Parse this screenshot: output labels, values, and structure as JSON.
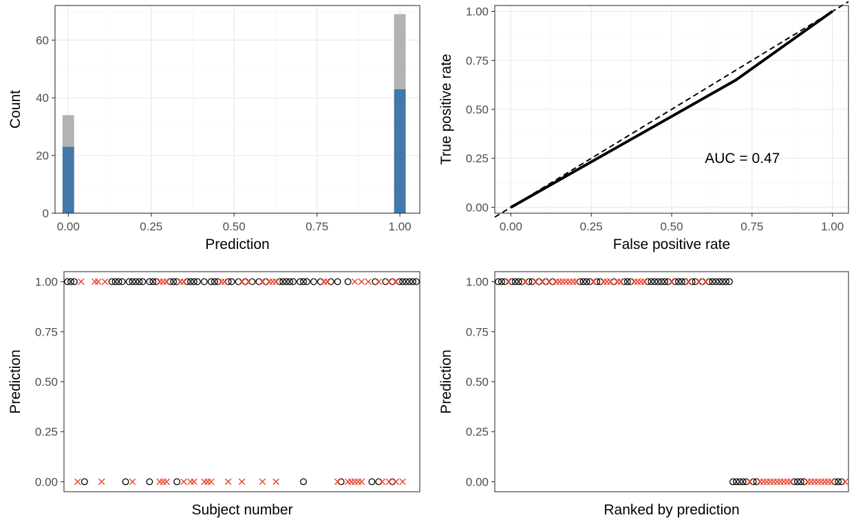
{
  "chart_data": [
    {
      "type": "bar",
      "panel": "histogram",
      "xlabel": "Prediction",
      "ylabel": "Count",
      "xlim": [
        -0.04,
        1.06
      ],
      "ylim": [
        0,
        72
      ],
      "x_ticks": [
        "0.00",
        "0.25",
        "0.50",
        "0.75",
        "1.00"
      ],
      "y_ticks": [
        "0",
        "20",
        "40",
        "60"
      ],
      "stacked": true,
      "categories": [
        0,
        1
      ],
      "series": [
        {
          "group": "lower",
          "color": "#4477aa",
          "values": [
            23,
            43
          ]
        },
        {
          "group": "upper",
          "color": "#b3b3b3",
          "values": [
            11,
            26
          ]
        }
      ],
      "totals": [
        34,
        69
      ],
      "grid": true
    },
    {
      "type": "line",
      "panel": "roc",
      "xlabel": "False positive rate",
      "ylabel": "True positive rate",
      "xlim": [
        -0.05,
        1.05
      ],
      "ylim": [
        -0.03,
        1.03
      ],
      "x_ticks": [
        "0.00",
        "0.25",
        "0.50",
        "0.75",
        "1.00"
      ],
      "y_ticks": [
        "0.00",
        "0.25",
        "0.50",
        "0.75",
        "1.00"
      ],
      "series": [
        {
          "style": "solid",
          "color": "#000000",
          "x": [
            0,
            0.7,
            1.0
          ],
          "y": [
            0,
            0.65,
            1.0
          ]
        },
        {
          "style": "dashed",
          "color": "#000000",
          "x": [
            -0.05,
            1.05
          ],
          "y": [
            -0.05,
            1.05
          ]
        }
      ],
      "annotation": {
        "text": "AUC = 0.47",
        "x": 0.72,
        "y": 0.25
      },
      "grid": true
    },
    {
      "type": "scatter",
      "panel": "by-subject",
      "xlabel": "Subject number",
      "ylabel": "Prediction",
      "ylim": [
        -0.05,
        1.05
      ],
      "y_ticks": [
        "0.00",
        "0.25",
        "0.50",
        "0.75",
        "1.00"
      ],
      "x_count": 103,
      "grid": false,
      "series": [
        {
          "marker": "circle",
          "color": "#000000",
          "y_value": 1,
          "x": [
            1,
            2,
            3,
            14,
            15,
            16,
            17,
            19,
            20,
            21,
            22,
            23,
            25,
            26,
            27,
            31,
            32,
            33,
            36,
            37,
            38,
            39,
            41,
            43,
            44,
            45,
            48,
            49,
            51,
            53,
            55,
            57,
            59,
            63,
            64,
            65,
            66,
            67,
            69,
            70,
            71,
            73,
            75,
            78,
            80,
            83,
            91,
            94,
            96,
            98,
            99,
            100,
            101,
            102,
            103
          ]
        },
        {
          "marker": "cross",
          "color": "#e8402b",
          "y_value": 1,
          "x": [
            5,
            9,
            10,
            12,
            28,
            29,
            30,
            34,
            35,
            46,
            47,
            52,
            54,
            58,
            60,
            61,
            62,
            76,
            77,
            85,
            87,
            89,
            92,
            95,
            97
          ]
        },
        {
          "marker": "circle",
          "color": "#000000",
          "y_value": 0,
          "x": [
            6,
            18,
            25,
            33,
            70,
            81,
            90,
            92,
            96
          ]
        },
        {
          "marker": "cross",
          "color": "#e8402b",
          "y_value": 0,
          "x": [
            4,
            11,
            20,
            28,
            29,
            30,
            35,
            37,
            38,
            41,
            42,
            43,
            48,
            52,
            58,
            62,
            80,
            83,
            84,
            85,
            86,
            87,
            93,
            95,
            97,
            99
          ]
        }
      ]
    },
    {
      "type": "scatter",
      "panel": "ranked",
      "xlabel": "Ranked by prediction",
      "ylabel": "Prediction",
      "ylim": [
        -0.05,
        1.05
      ],
      "y_ticks": [
        "0.00",
        "0.25",
        "0.50",
        "0.75",
        "1.00"
      ],
      "x_count": 103,
      "grid": false,
      "series": [
        {
          "marker": "circle",
          "color": "#000000",
          "y_value": 1,
          "x": [
            1,
            2,
            3,
            5,
            6,
            7,
            8,
            10,
            11,
            13,
            15,
            17,
            25,
            26,
            27,
            28,
            30,
            31,
            35,
            38,
            39,
            40,
            45,
            46,
            47,
            48,
            49,
            50,
            51,
            53,
            54,
            55,
            56,
            58,
            59,
            61,
            63,
            64,
            65,
            66,
            67,
            68,
            69
          ]
        },
        {
          "marker": "cross",
          "color": "#e8402b",
          "y_value": 1,
          "x": [
            4,
            9,
            12,
            14,
            16,
            18,
            19,
            20,
            21,
            22,
            23,
            24,
            29,
            32,
            33,
            34,
            36,
            37,
            41,
            42,
            43,
            44,
            52,
            57,
            60,
            62
          ]
        },
        {
          "marker": "circle",
          "color": "#000000",
          "y_value": 0,
          "x": [
            70,
            71,
            72,
            73,
            74,
            76,
            77,
            88,
            89,
            90,
            91,
            100,
            101,
            102
          ]
        },
        {
          "marker": "cross",
          "color": "#e8402b",
          "y_value": 0,
          "x": [
            75,
            78,
            79,
            80,
            81,
            82,
            83,
            84,
            85,
            86,
            87,
            92,
            93,
            94,
            95,
            96,
            97,
            98,
            99,
            103
          ]
        }
      ]
    }
  ]
}
